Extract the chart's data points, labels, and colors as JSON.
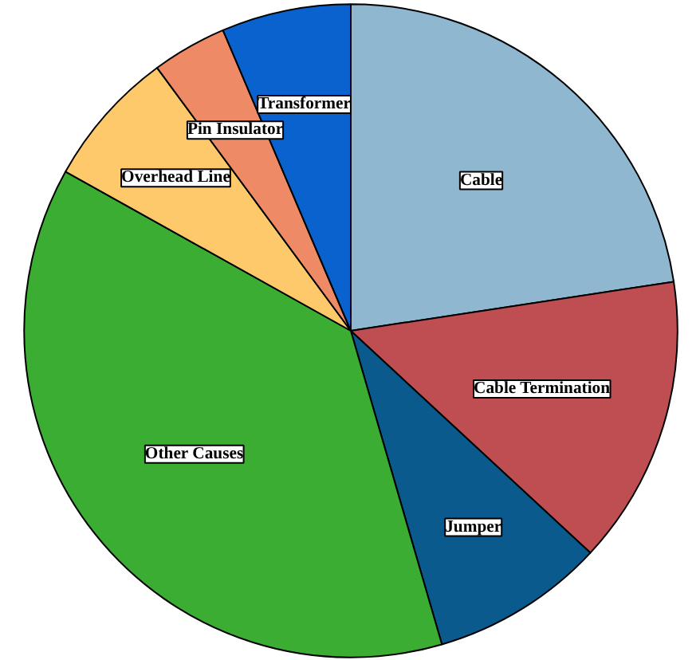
{
  "chart_data": {
    "type": "pie",
    "categories": [
      "Cable",
      "Cable Termination",
      "Jumper",
      "Other Causes",
      "Overhead Line",
      "Pin Insulator",
      "Transformer"
    ],
    "values": [
      22.6,
      14.3,
      8.6,
      37.6,
      6.8,
      3.7,
      6.4
    ],
    "colors": [
      "#8fb8d0",
      "#bf4e52",
      "#0b5a8e",
      "#3aad32",
      "#fec96a",
      "#ee8b66",
      "#0a62cf"
    ]
  }
}
